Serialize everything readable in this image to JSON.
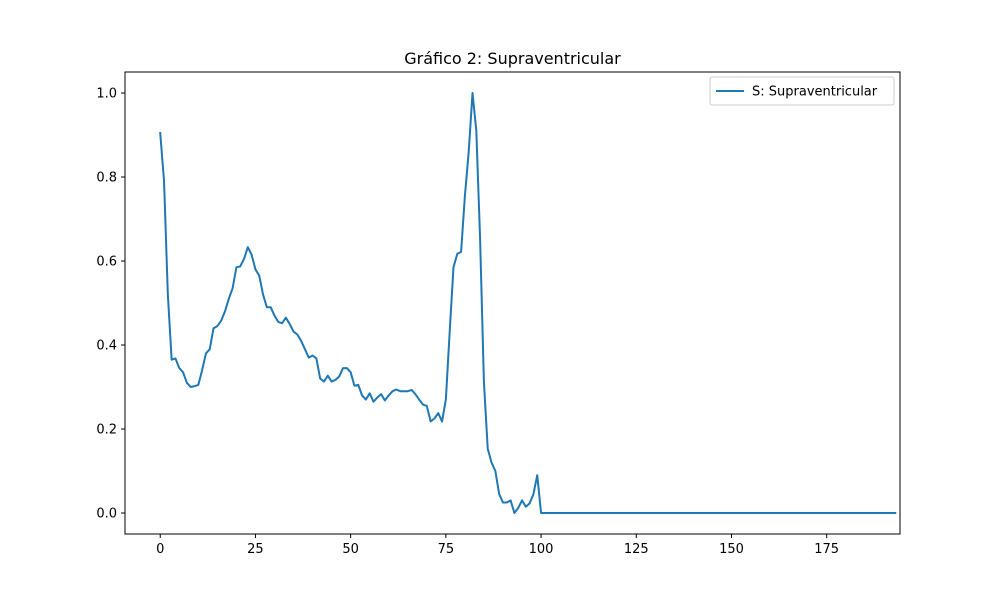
{
  "chart_data": {
    "type": "line",
    "title": "Gráfico 2: Supraventricular",
    "xlabel": "",
    "ylabel": "",
    "xlim": [
      -9.25,
      194.25
    ],
    "ylim": [
      -0.05,
      1.05
    ],
    "xticks": [
      0,
      25,
      50,
      75,
      100,
      125,
      150,
      175
    ],
    "yticks": [
      0.0,
      0.2,
      0.4,
      0.6,
      0.8,
      1.0
    ],
    "xtick_labels": [
      "0",
      "25",
      "50",
      "75",
      "100",
      "125",
      "150",
      "175"
    ],
    "ytick_labels": [
      "0.0",
      "0.2",
      "0.4",
      "0.6",
      "0.8",
      "1.0"
    ],
    "grid": false,
    "legend": "top-right",
    "series": [
      {
        "name": "S: Supraventricular",
        "color": "#1f77b4",
        "x_start": 0,
        "x_step": 1,
        "values": [
          0.905,
          0.79,
          0.52,
          0.365,
          0.368,
          0.345,
          0.335,
          0.31,
          0.3,
          0.302,
          0.305,
          0.34,
          0.38,
          0.39,
          0.44,
          0.445,
          0.458,
          0.48,
          0.51,
          0.535,
          0.585,
          0.587,
          0.605,
          0.633,
          0.615,
          0.58,
          0.565,
          0.52,
          0.49,
          0.49,
          0.47,
          0.455,
          0.452,
          0.465,
          0.45,
          0.432,
          0.425,
          0.41,
          0.39,
          0.37,
          0.375,
          0.368,
          0.32,
          0.313,
          0.327,
          0.313,
          0.317,
          0.325,
          0.345,
          0.345,
          0.335,
          0.303,
          0.305,
          0.28,
          0.27,
          0.285,
          0.265,
          0.275,
          0.283,
          0.268,
          0.28,
          0.29,
          0.294,
          0.29,
          0.29,
          0.29,
          0.293,
          0.283,
          0.27,
          0.258,
          0.255,
          0.218,
          0.225,
          0.238,
          0.218,
          0.27,
          0.43,
          0.585,
          0.617,
          0.622,
          0.755,
          0.86,
          1.0,
          0.91,
          0.65,
          0.31,
          0.153,
          0.12,
          0.1,
          0.045,
          0.025,
          0.025,
          0.03,
          0.0,
          0.012,
          0.03,
          0.015,
          0.023,
          0.045,
          0.09,
          0.0,
          0.0,
          0.0,
          0.0,
          0.0,
          0.0,
          0.0,
          0.0,
          0.0,
          0.0,
          0.0,
          0.0,
          0.0,
          0.0,
          0.0,
          0.0,
          0.0,
          0.0,
          0.0,
          0.0,
          0.0,
          0.0,
          0.0,
          0.0,
          0.0,
          0.0,
          0.0,
          0.0,
          0.0,
          0.0,
          0.0,
          0.0,
          0.0,
          0.0,
          0.0,
          0.0,
          0.0,
          0.0,
          0.0,
          0.0,
          0.0,
          0.0,
          0.0,
          0.0,
          0.0,
          0.0,
          0.0,
          0.0,
          0.0,
          0.0,
          0.0,
          0.0,
          0.0,
          0.0,
          0.0,
          0.0,
          0.0,
          0.0,
          0.0,
          0.0,
          0.0,
          0.0,
          0.0,
          0.0,
          0.0,
          0.0,
          0.0,
          0.0,
          0.0,
          0.0,
          0.0,
          0.0,
          0.0,
          0.0,
          0.0,
          0.0,
          0.0,
          0.0,
          0.0,
          0.0,
          0.0,
          0.0,
          0.0,
          0.0,
          0.0,
          0.0,
          0.0,
          0.0,
          0.0,
          0.0,
          0.0,
          0.0,
          0.0,
          0.0
        ]
      }
    ]
  }
}
